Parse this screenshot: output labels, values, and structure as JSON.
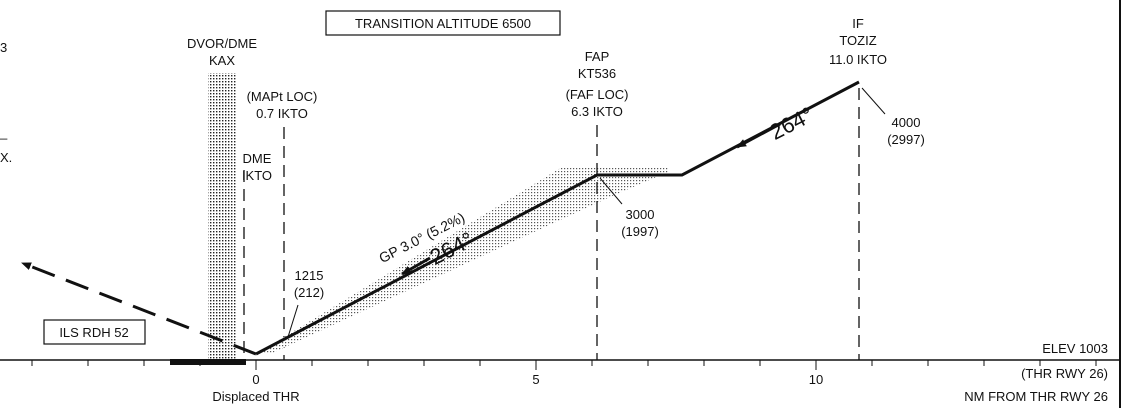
{
  "header": {
    "transition_altitude": "TRANSITION ALTITUDE 6500",
    "left_edge_fragments": [
      "3",
      "_",
      "X."
    ]
  },
  "navaid": {
    "type": "DVOR/DME",
    "ident": "KAX"
  },
  "mapt": {
    "line1": "(MAPt LOC)",
    "line2": "0.7 IKTO"
  },
  "dme": {
    "line1": "DME",
    "line2": "IKTO"
  },
  "fap": {
    "line1": "FAP",
    "line2": "KT536",
    "line3": "(FAF LOC)",
    "line4": "6.3 IKTO"
  },
  "if_fix": {
    "line1": "IF",
    "line2": "TOZIZ",
    "line3": "11.0 IKTO"
  },
  "altitudes": {
    "if_alt": "4000",
    "if_hat": "(2997)",
    "fap_alt": "3000",
    "fap_hat": "(1997)",
    "thr_alt": "1215",
    "thr_hat": "(212)"
  },
  "courses": {
    "inbound": "264°",
    "final": "264°"
  },
  "glidepath": "GP 3.0° (5.2%)",
  "rdh": "ILS RDH 52",
  "elevation": {
    "elev": "ELEV 1003",
    "ref": "(THR RWY 26)"
  },
  "scale": {
    "ticks": [
      "0",
      "5",
      "10"
    ],
    "zero_label": "Displaced THR",
    "units": "NM FROM THR RWY 26"
  }
}
